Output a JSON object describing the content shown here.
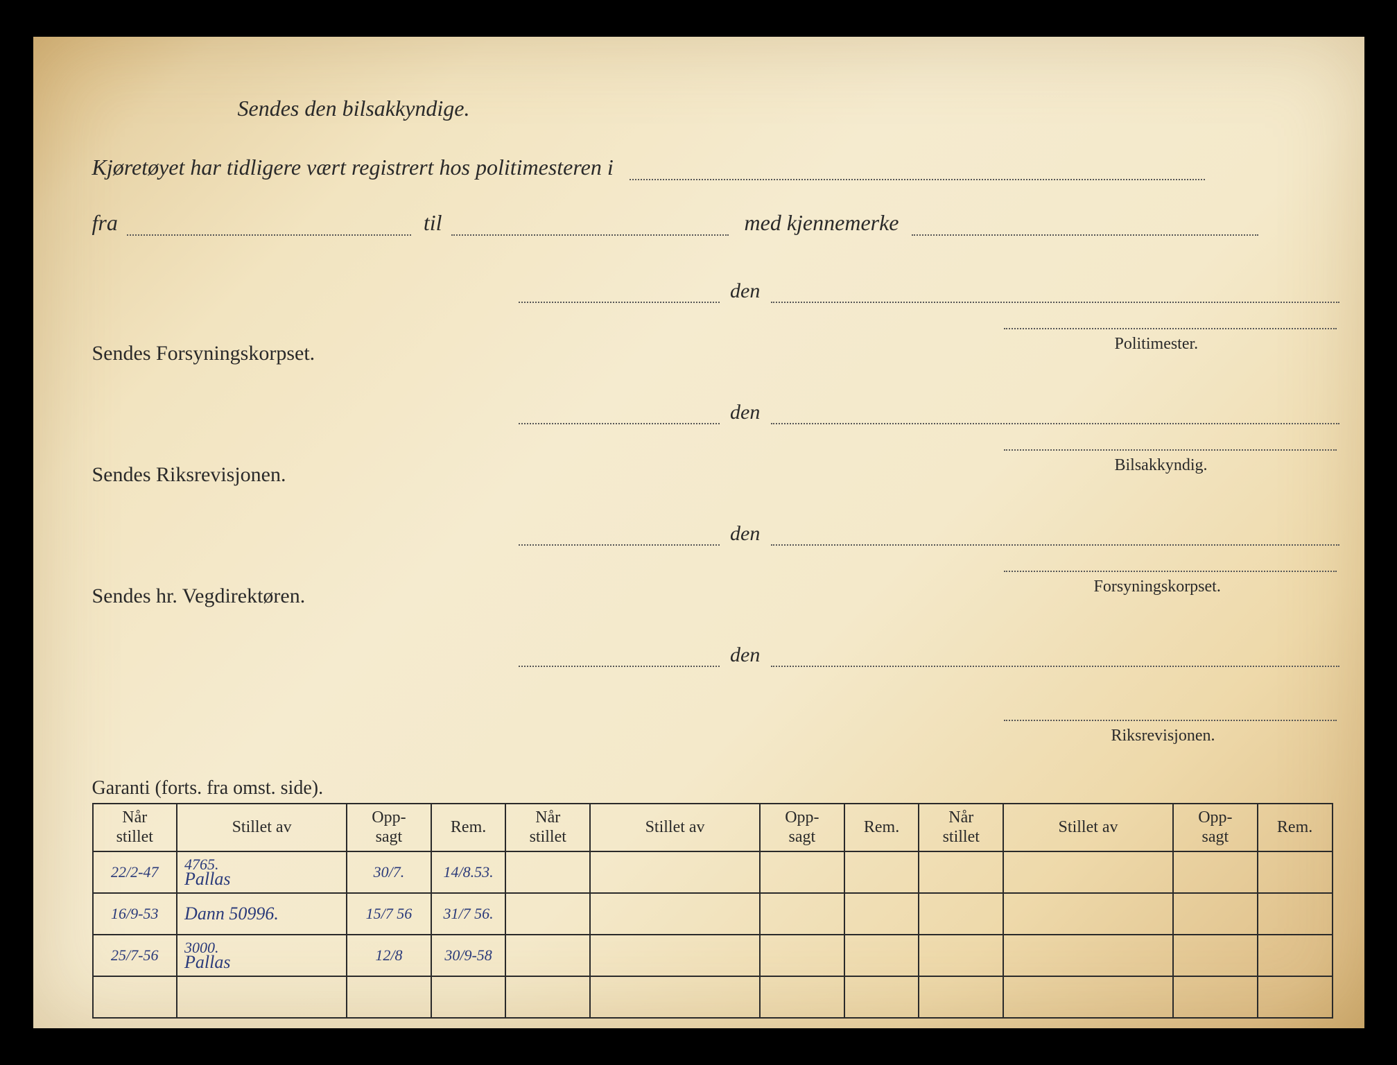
{
  "header": {
    "line1": "Sendes den bilsakkyndige.",
    "line2_prefix": "Kjøretøyet har tidligere vært registrert hos politimesteren i",
    "fra": "fra",
    "til": "til",
    "med_kjennemerke": "med kjennemerke",
    "den": "den"
  },
  "sections": {
    "s1": "Sendes Forsyningskorpset.",
    "s2": "Sendes Riksrevisjonen.",
    "s3": "Sendes hr. Vegdirektøren.",
    "sig1": "Politimester.",
    "sig2": "Bilsakkyndig.",
    "sig3": "Forsyningskorpset.",
    "sig4": "Riksrevisjonen."
  },
  "garanti_label": "Garanti (forts. fra omst. side).",
  "table": {
    "columns": {
      "nar_stillet": "Når\nstillet",
      "stillet_av": "Stillet av",
      "oppsagt": "Opp-\nsagt",
      "rem": "Rem."
    },
    "col_widths_pct": [
      6.2,
      12.5,
      6.2,
      5.5,
      6.2,
      12.5,
      6.2,
      5.5,
      6.2,
      12.5,
      6.2,
      5.5
    ],
    "rows": [
      {
        "nar": "22/2-47",
        "stillet_av_line1": "4765.",
        "stillet_av_line2": "Pallas",
        "oppsagt": "30/7.",
        "rem": "14/8.53."
      },
      {
        "nar": "16/9-53",
        "stillet_av_line1": "",
        "stillet_av_line2": "Dann 50996.",
        "oppsagt": "15/7 56",
        "rem": "31/7 56."
      },
      {
        "nar": "25/7-56",
        "stillet_av_line1": "3000.",
        "stillet_av_line2": "Pallas",
        "oppsagt": "12/8",
        "rem": "30/9-58"
      },
      {
        "nar": "",
        "stillet_av_line1": "",
        "stillet_av_line2": "",
        "oppsagt": "",
        "rem": ""
      }
    ]
  },
  "colors": {
    "ink": "#2a2a2a",
    "handwriting": "#2a3a7a",
    "paper_light": "#f5ebcf",
    "paper_dark": "#d9b97f"
  }
}
